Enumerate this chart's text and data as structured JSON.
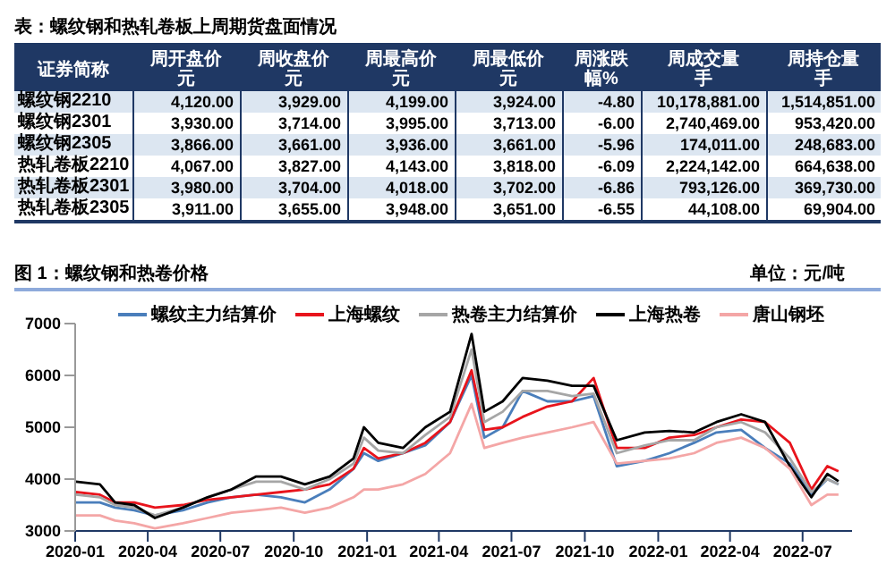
{
  "chart_data": [
    {
      "type": "other",
      "title": "表：螺纹钢和热轧卷板上周期货盘面情况",
      "ylabel": "证券简称",
      "categories": [
        "周开盘价元",
        "周收盘价元",
        "周最高价元",
        "周最低价元",
        "周涨跌幅%",
        "周成交量手",
        "周持仓量手"
      ],
      "y_categories": [
        "螺纹钢2210",
        "螺纹钢2301",
        "螺纹钢2305",
        "热轧卷板2210",
        "热轧卷板2301",
        "热轧卷板2305"
      ],
      "cell_labels": [
        [
          "4,120.00",
          "3,929.00",
          "4,199.00",
          "3,924.00",
          "-4.80",
          "10,178,881.00",
          "1,514,851.00"
        ],
        [
          "3,930.00",
          "3,714.00",
          "3,995.00",
          "3,713.00",
          "-6.00",
          "2,740,469.00",
          "953,420.00"
        ],
        [
          "3,866.00",
          "3,661.00",
          "3,936.00",
          "3,661.00",
          "-5.96",
          "174,011.00",
          "248,683.00"
        ],
        [
          "4,067.00",
          "3,827.00",
          "4,143.00",
          "3,818.00",
          "-6.09",
          "2,224,142.00",
          "664,638.00"
        ],
        [
          "3,980.00",
          "3,704.00",
          "4,018.00",
          "3,702.00",
          "-6.86",
          "793,126.00",
          "369,730.00"
        ],
        [
          "3,911.00",
          "3,655.00",
          "3,948.00",
          "3,651.00",
          "-6.55",
          "44,108.00",
          "69,904.00"
        ]
      ]
    },
    {
      "type": "line",
      "title": "图 1：螺纹钢和热卷价格",
      "annotations": [
        "单位：元/吨"
      ],
      "x": [
        "2020-01-02",
        "2020-02-01",
        "2020-02-20",
        "2020-03-15",
        "2020-04-10",
        "2020-05-15",
        "2020-06-15",
        "2020-07-15",
        "2020-08-15",
        "2020-09-15",
        "2020-10-15",
        "2020-11-15",
        "2020-12-15",
        "2020-12-28",
        "2021-01-15",
        "2021-02-15",
        "2021-03-15",
        "2021-04-15",
        "2021-05-12",
        "2021-05-28",
        "2021-06-20",
        "2021-07-15",
        "2021-08-15",
        "2021-09-15",
        "2021-10-12",
        "2021-11-10",
        "2021-12-15",
        "2022-01-15",
        "2022-02-15",
        "2022-03-15",
        "2022-04-15",
        "2022-05-15",
        "2022-06-15",
        "2022-07-12",
        "2022-08-01",
        "2022-08-15"
      ],
      "series": [
        {
          "name": "螺纹主力结算价",
          "color": "#4a7ebb",
          "values": [
            3550,
            3550,
            3450,
            3400,
            3300,
            3400,
            3550,
            3650,
            3700,
            3650,
            3550,
            3800,
            4200,
            4500,
            4350,
            4500,
            4650,
            5100,
            6000,
            4800,
            5000,
            5700,
            5500,
            5500,
            5600,
            4250,
            4350,
            4500,
            4700,
            4900,
            4950,
            4600,
            4300,
            3700,
            4000,
            3900
          ]
        },
        {
          "name": "上海螺纹",
          "color": "#e8141c",
          "values": [
            3750,
            3700,
            3550,
            3550,
            3450,
            3500,
            3600,
            3650,
            3700,
            3750,
            3800,
            3900,
            4200,
            4600,
            4400,
            4500,
            4700,
            5100,
            6100,
            4950,
            5000,
            5200,
            5400,
            5500,
            5950,
            4600,
            4600,
            4800,
            4850,
            5000,
            5150,
            5100,
            4700,
            3800,
            4250,
            4150
          ]
        },
        {
          "name": "热卷主力结算价",
          "color": "#a6a6a6",
          "values": [
            3700,
            3650,
            3500,
            3450,
            3300,
            3450,
            3650,
            3800,
            3950,
            3950,
            3800,
            4000,
            4300,
            4800,
            4550,
            4500,
            4850,
            5200,
            6500,
            5100,
            5300,
            5700,
            5700,
            5600,
            5650,
            4500,
            4650,
            4750,
            4750,
            5000,
            5100,
            4900,
            4400,
            3750,
            4000,
            3900
          ]
        },
        {
          "name": "上海热卷",
          "color": "#000000",
          "values": [
            3950,
            3900,
            3550,
            3500,
            3250,
            3450,
            3650,
            3800,
            4050,
            4050,
            3900,
            4050,
            4400,
            5000,
            4700,
            4600,
            5000,
            5300,
            6800,
            5300,
            5500,
            5950,
            5900,
            5800,
            5800,
            4750,
            4900,
            4930,
            4900,
            5100,
            5250,
            5100,
            4250,
            3650,
            4100,
            3960
          ]
        },
        {
          "name": "唐山钢坯",
          "color": "#f4a6a6",
          "values": [
            3300,
            3300,
            3200,
            3150,
            3050,
            3150,
            3250,
            3350,
            3400,
            3450,
            3350,
            3450,
            3650,
            3800,
            3800,
            3900,
            4100,
            4500,
            5450,
            4600,
            4700,
            4800,
            4900,
            5000,
            5100,
            4300,
            4350,
            4400,
            4500,
            4700,
            4800,
            4600,
            4200,
            3500,
            3700,
            3700
          ]
        }
      ],
      "xlim": [
        "2020-01-01",
        "2022-09-01"
      ],
      "xticks": [
        "2020-01",
        "2020-04",
        "2020-07",
        "2020-10",
        "2021-01",
        "2021-04",
        "2021-07",
        "2021-10",
        "2022-01",
        "2022-04",
        "2022-07"
      ],
      "ylim": [
        3000,
        7000
      ],
      "yticks": [
        3000,
        4000,
        5000,
        6000,
        7000
      ],
      "grid": false,
      "legend": "top",
      "marker": "none",
      "line_style": "solid"
    }
  ]
}
